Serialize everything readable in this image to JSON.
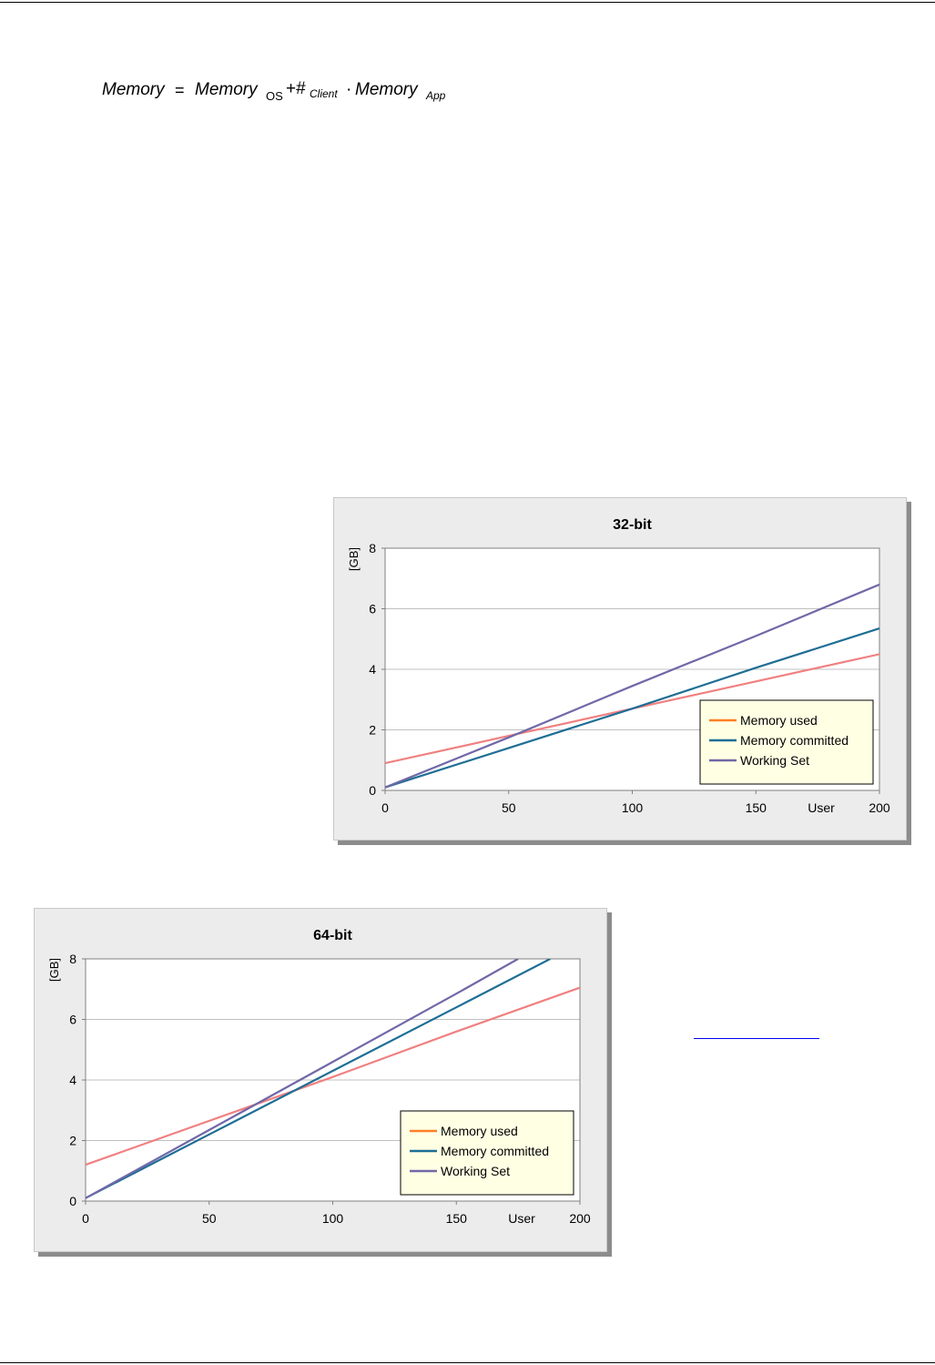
{
  "formula": {
    "lhs": "Memory",
    "equals": "=",
    "memory_os": "Memory",
    "sub_os": "OS",
    "plus": "+#",
    "sub_client": "Client",
    "dot": "·",
    "memory_app": "Memory",
    "sub_app": "App"
  },
  "chart_data": [
    {
      "type": "line",
      "title": "32-bit",
      "xlabel": "User",
      "ylabel": "[GB]",
      "x_ticks": [
        "0",
        "50",
        "100",
        "150",
        "200"
      ],
      "y_ticks": [
        "0",
        "2",
        "4",
        "6",
        "8"
      ],
      "xlim": [
        0,
        200
      ],
      "ylim": [
        0,
        8
      ],
      "grid": true,
      "legend_position": "bottom-right",
      "series": [
        {
          "name": "Memory used",
          "legend_color": "#ff7f27",
          "line_color": "#f08080",
          "x": [
            0,
            50,
            100,
            150,
            200
          ],
          "y": [
            0.9,
            1.8,
            2.7,
            3.6,
            4.5
          ]
        },
        {
          "name": "Memory committed",
          "legend_color": "#1f6e95",
          "line_color": "#1f6e95",
          "x": [
            0,
            50,
            100,
            150,
            200
          ],
          "y": [
            0.1,
            1.4,
            2.7,
            4.05,
            5.35
          ]
        },
        {
          "name": "Working Set",
          "legend_color": "#7068a8",
          "line_color": "#7068a8",
          "x": [
            0,
            50,
            100,
            150,
            200
          ],
          "y": [
            0.1,
            1.75,
            3.45,
            5.1,
            6.8
          ]
        }
      ]
    },
    {
      "type": "line",
      "title": "64-bit",
      "xlabel": "User",
      "ylabel": "[GB]",
      "x_ticks": [
        "0",
        "50",
        "100",
        "150",
        "200"
      ],
      "y_ticks": [
        "0",
        "2",
        "4",
        "6",
        "8"
      ],
      "xlim": [
        0,
        200
      ],
      "ylim": [
        0,
        8
      ],
      "grid": true,
      "legend_position": "bottom-right",
      "series": [
        {
          "name": "Memory used",
          "legend_color": "#ff7f27",
          "line_color": "#f08080",
          "x": [
            0,
            50,
            100,
            150,
            200
          ],
          "y": [
            1.2,
            2.65,
            4.1,
            5.6,
            7.05
          ]
        },
        {
          "name": "Memory committed",
          "legend_color": "#1f6e95",
          "line_color": "#1f6e95",
          "x": [
            0,
            50,
            100,
            150,
            188
          ],
          "y": [
            0.1,
            2.2,
            4.3,
            6.4,
            8.0
          ]
        },
        {
          "name": "Working Set",
          "legend_color": "#7068a8",
          "line_color": "#7068a8",
          "x": [
            0,
            50,
            100,
            150,
            175
          ],
          "y": [
            0.1,
            2.35,
            4.6,
            6.85,
            8.0
          ]
        }
      ]
    }
  ]
}
